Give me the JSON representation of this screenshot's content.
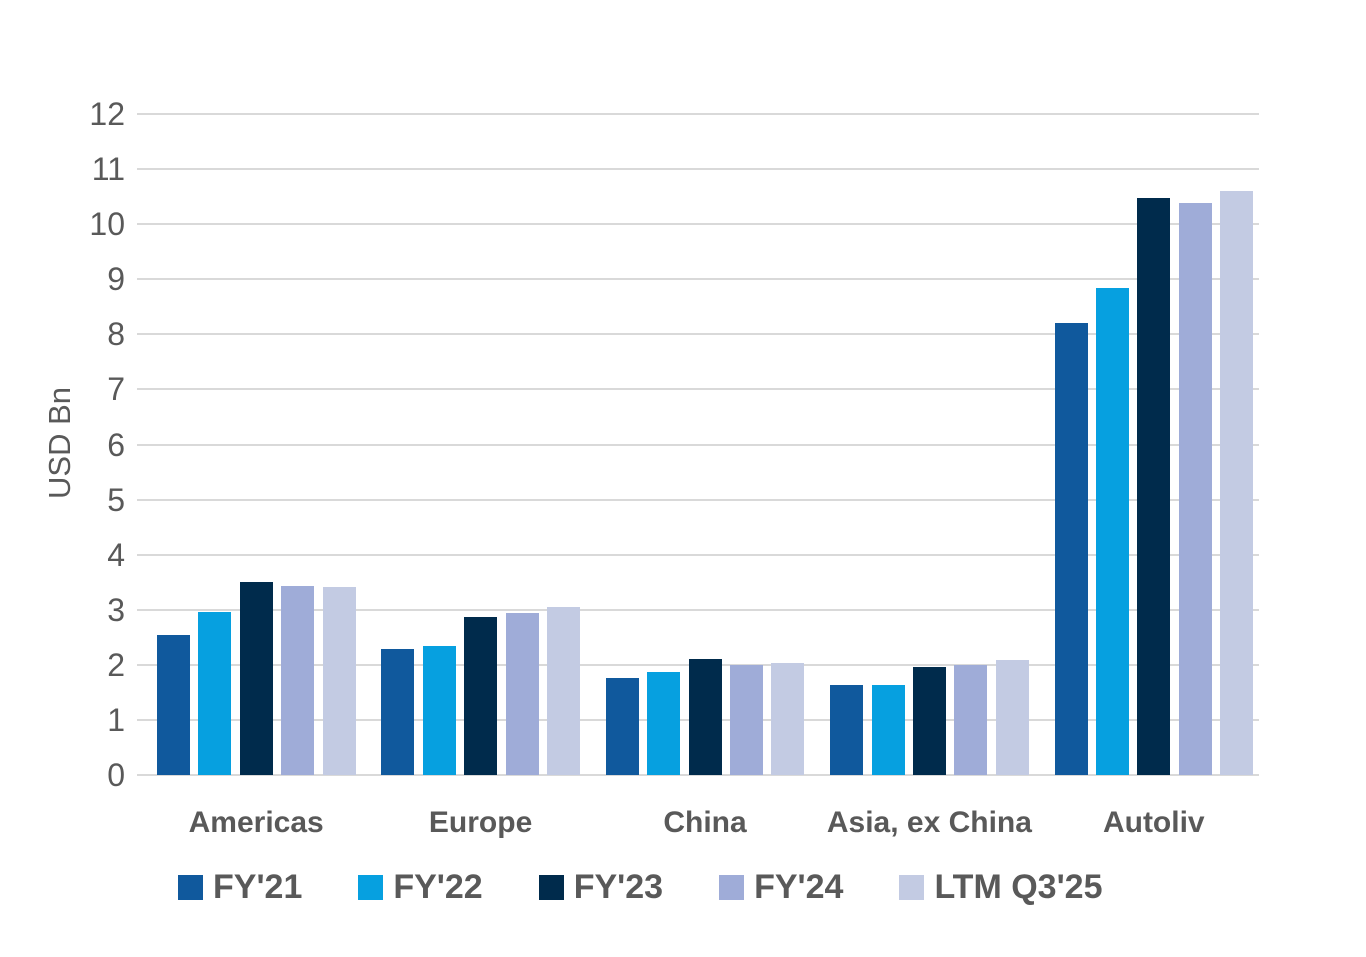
{
  "chart_data": {
    "type": "bar",
    "title": "",
    "ylabel": "USD Bn",
    "xlabel": "",
    "categories": [
      "Americas",
      "Europe",
      "China",
      "Asia, ex China",
      "Autoliv"
    ],
    "series": [
      {
        "name": "FY'21",
        "color": "#10599D",
        "values": [
          2.54,
          2.29,
          1.76,
          1.63,
          8.21
        ]
      },
      {
        "name": "FY'22",
        "color": "#06A0E0",
        "values": [
          2.96,
          2.35,
          1.87,
          1.63,
          8.84
        ]
      },
      {
        "name": "FY'23",
        "color": "#002B4C",
        "values": [
          3.51,
          2.87,
          2.1,
          1.96,
          10.48
        ]
      },
      {
        "name": "FY'24",
        "color": "#9FACD8",
        "values": [
          3.43,
          2.95,
          2.0,
          2.0,
          10.39
        ]
      },
      {
        "name": "LTM Q3'25",
        "color": "#C3CBE3",
        "values": [
          3.42,
          3.05,
          2.04,
          2.08,
          10.6
        ]
      }
    ],
    "ylim": [
      0,
      12
    ],
    "yticks": [
      0,
      1,
      2,
      3,
      4,
      5,
      6,
      7,
      8,
      9,
      10,
      11,
      12
    ],
    "grid": true,
    "legend_position": "bottom",
    "gridline_color": "#D9D9D9",
    "text_color": "#595959"
  }
}
